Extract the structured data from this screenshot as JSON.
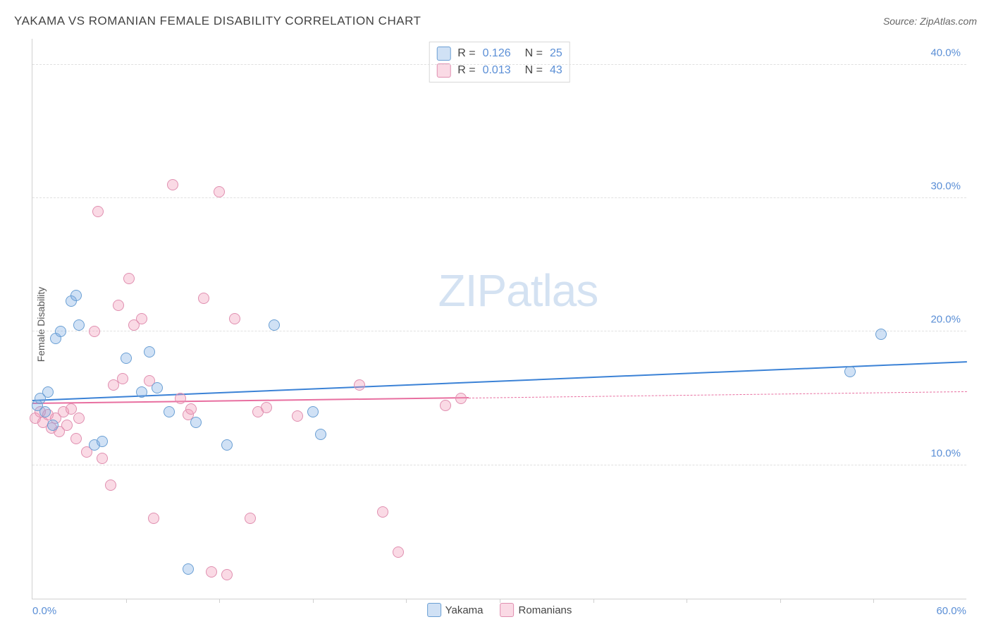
{
  "title": "YAKAMA VS ROMANIAN FEMALE DISABILITY CORRELATION CHART",
  "source": "Source: ZipAtlas.com",
  "ylabel": "Female Disability",
  "watermark_bold": "ZIP",
  "watermark_light": "atlas",
  "xlim": [
    0,
    60
  ],
  "ylim": [
    0,
    42
  ],
  "ytick_step": 10,
  "xtick_step": 6,
  "x_label_min": "0.0%",
  "x_label_max": "60.0%",
  "y_tick_labels": [
    "10.0%",
    "20.0%",
    "30.0%",
    "40.0%"
  ],
  "grid_color": "#e0e0e0",
  "axis_color": "#d0d0d0",
  "series": [
    {
      "name": "Yakama",
      "fill": "rgba(120,170,225,0.35)",
      "stroke": "#6a9fd4",
      "R": "0.126",
      "N": "25",
      "marker_size": 16,
      "trend": {
        "x0": 0,
        "y0": 14.8,
        "x1": 60,
        "y1": 17.7,
        "color": "#3b82d6",
        "width": 2,
        "dash_from": null
      },
      "points": [
        [
          0.3,
          14.5
        ],
        [
          0.5,
          15.0
        ],
        [
          0.8,
          14.0
        ],
        [
          1.0,
          15.5
        ],
        [
          1.3,
          13.0
        ],
        [
          1.5,
          19.5
        ],
        [
          1.8,
          20.0
        ],
        [
          2.5,
          22.3
        ],
        [
          2.8,
          22.7
        ],
        [
          3.0,
          20.5
        ],
        [
          4.0,
          11.5
        ],
        [
          4.5,
          11.8
        ],
        [
          6.0,
          18.0
        ],
        [
          7.0,
          15.5
        ],
        [
          7.5,
          18.5
        ],
        [
          8.0,
          15.8
        ],
        [
          8.8,
          14.0
        ],
        [
          10.0,
          2.2
        ],
        [
          10.5,
          13.2
        ],
        [
          12.5,
          11.5
        ],
        [
          15.5,
          20.5
        ],
        [
          18.0,
          14.0
        ],
        [
          18.5,
          12.3
        ],
        [
          52.5,
          17.0
        ],
        [
          54.5,
          19.8
        ]
      ]
    },
    {
      "name": "Romanians",
      "fill": "rgba(240,150,180,0.35)",
      "stroke": "#e08fb0",
      "R": "0.013",
      "N": "43",
      "marker_size": 16,
      "trend": {
        "x0": 0,
        "y0": 14.6,
        "x1": 60,
        "y1": 15.5,
        "color": "#e86fa0",
        "width": 2,
        "dash_from": 28
      },
      "points": [
        [
          0.2,
          13.5
        ],
        [
          0.5,
          14.0
        ],
        [
          0.7,
          13.2
        ],
        [
          1.0,
          13.8
        ],
        [
          1.2,
          12.8
        ],
        [
          1.5,
          13.5
        ],
        [
          1.7,
          12.5
        ],
        [
          2.0,
          14.0
        ],
        [
          2.2,
          13.0
        ],
        [
          2.5,
          14.2
        ],
        [
          2.8,
          12.0
        ],
        [
          3.0,
          13.5
        ],
        [
          3.5,
          11.0
        ],
        [
          4.0,
          20.0
        ],
        [
          4.2,
          29.0
        ],
        [
          4.5,
          10.5
        ],
        [
          5.0,
          8.5
        ],
        [
          5.2,
          16.0
        ],
        [
          5.5,
          22.0
        ],
        [
          5.8,
          16.5
        ],
        [
          6.2,
          24.0
        ],
        [
          6.5,
          20.5
        ],
        [
          7.0,
          21.0
        ],
        [
          7.5,
          16.3
        ],
        [
          7.8,
          6.0
        ],
        [
          9.0,
          31.0
        ],
        [
          9.5,
          15.0
        ],
        [
          10.0,
          13.8
        ],
        [
          10.2,
          14.2
        ],
        [
          11.0,
          22.5
        ],
        [
          11.5,
          2.0
        ],
        [
          12.0,
          30.5
        ],
        [
          12.5,
          1.8
        ],
        [
          13.0,
          21.0
        ],
        [
          14.0,
          6.0
        ],
        [
          14.5,
          14.0
        ],
        [
          15.0,
          14.3
        ],
        [
          17.0,
          13.7
        ],
        [
          21.0,
          16.0
        ],
        [
          22.5,
          6.5
        ],
        [
          23.5,
          3.5
        ],
        [
          26.5,
          14.5
        ],
        [
          27.5,
          15.0
        ]
      ]
    }
  ],
  "legend_labels": {
    "r_prefix": "R =",
    "n_prefix": "N ="
  }
}
